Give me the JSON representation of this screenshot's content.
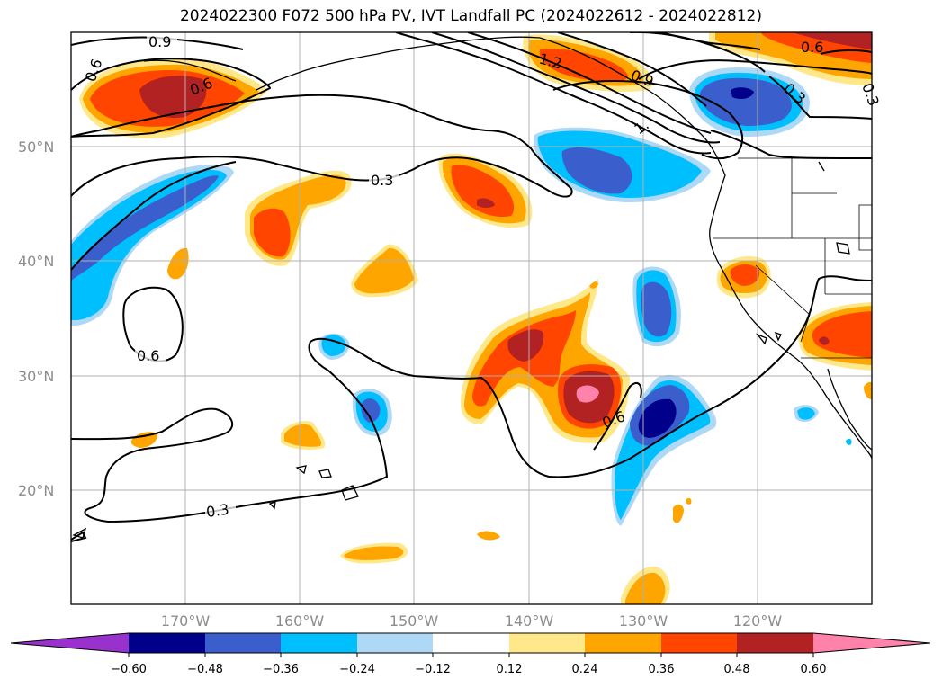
{
  "title": "2024022300 F072 500 hPa PV, IVT Landfall PC (2024022612 - 2024022812)",
  "map": {
    "lat_labels": [
      "50°N",
      "40°N",
      "30°N",
      "20°N"
    ],
    "lon_labels": [
      "170°W",
      "160°W",
      "150°W",
      "140°W",
      "130°W",
      "120°W"
    ],
    "contour_labels": [
      "0.9",
      "0.6",
      "1.2",
      "0.9",
      "0.3",
      "1.",
      "0.6",
      "0.3",
      "0.6",
      "0.6",
      "0.3",
      "0.6",
      "0.3"
    ],
    "colors": {
      "neg_060": "#9932cc",
      "neg_048": "#00008b",
      "neg_036": "#3a5fcd",
      "neg_024": "#00bfff",
      "neg_012": "#add8f6",
      "pos_012": "#ffe88a",
      "pos_024": "#ffa500",
      "pos_036": "#ff4500",
      "pos_048": "#b22222",
      "pos_060": "#ff82ab"
    }
  },
  "colorbar": {
    "ticks": [
      "−0.60",
      "−0.48",
      "−0.36",
      "−0.24",
      "−0.12",
      "0.12",
      "0.24",
      "0.36",
      "0.48",
      "0.60"
    ]
  }
}
